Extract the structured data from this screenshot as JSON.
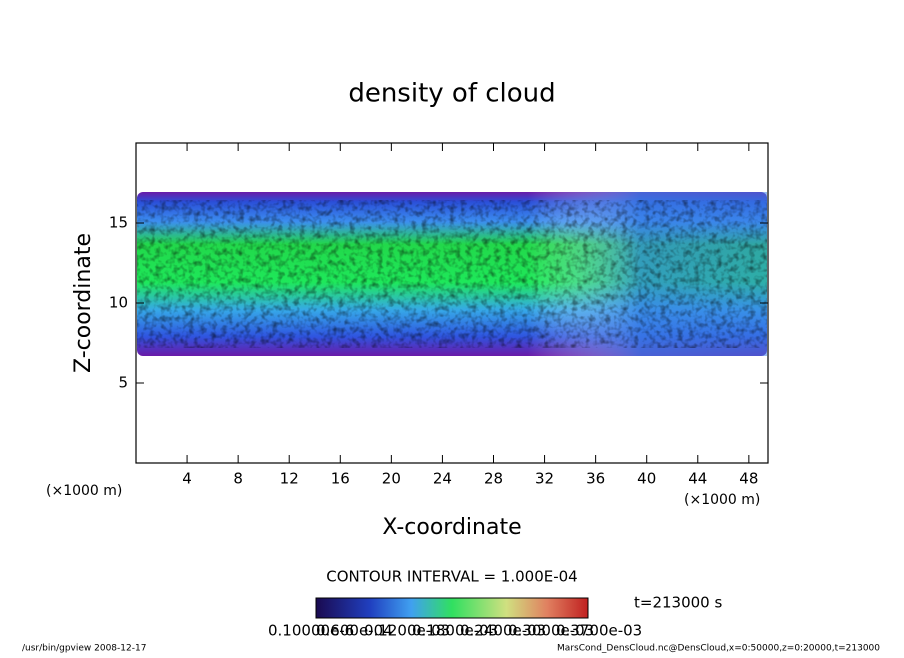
{
  "chart_data": {
    "type": "contour",
    "title": "density of cloud",
    "x_label": "X-coordinate",
    "y_label": "Z-coordinate",
    "x_unit_left": "(×1000 m)",
    "x_unit_right": "(×1000 m)",
    "xlim": [
      0,
      49.5
    ],
    "xticks": [
      4,
      8,
      12,
      16,
      20,
      24,
      28,
      32,
      36,
      40,
      44,
      48
    ],
    "ylim": [
      0,
      20
    ],
    "yticks": [
      5,
      10,
      15
    ],
    "contour_interval": "CONTOUR INTERVAL = 1.000E-04",
    "time": "t=213000 s",
    "colorbar_labels": [
      "0.10000e-6",
      "0.600e-04",
      "0.1200e-03",
      "0.1800e-03",
      "0.2400e-03",
      "0.3000e-03",
      "0.3700e-03"
    ],
    "footer_left": "/usr/bin/gpview  2008-12-17",
    "footer_right": "MarsCond_DensCloud.nc@DensCloud,x=0:50000,z=0:20000,t=213000"
  }
}
